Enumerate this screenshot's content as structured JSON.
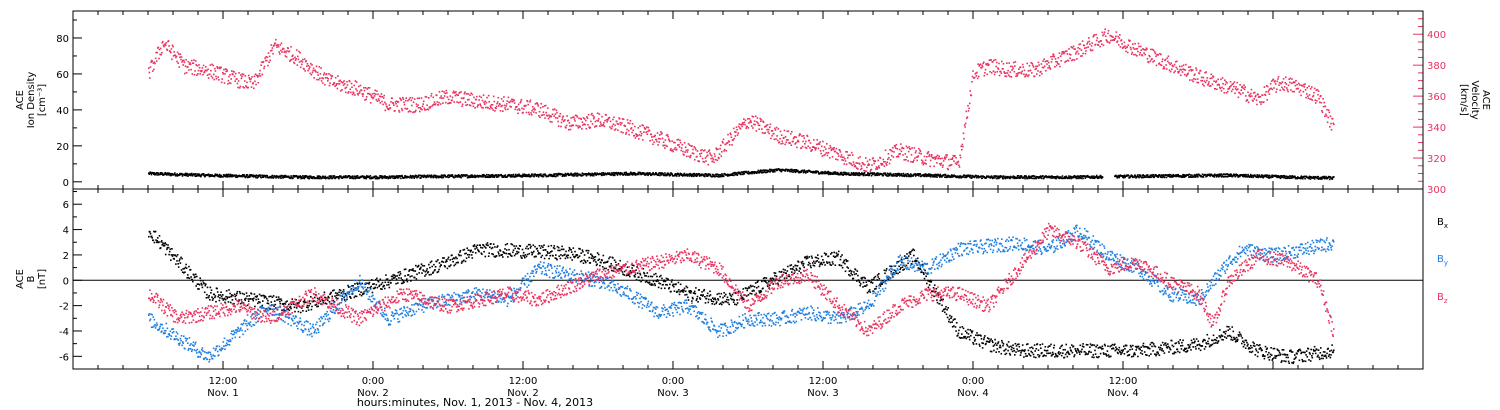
{
  "colors": {
    "black": "#000000",
    "pink": "#e8325f",
    "blue": "#1f7fe0",
    "axis": "#000000"
  },
  "chart_data": [
    {
      "id": "top",
      "type": "scatter",
      "ylabel_lines": [
        "ACE",
        "Ion Density",
        "[cm⁻³]"
      ],
      "ylabel_right_lines": [
        "ACE",
        "Velocity",
        "[km/s]"
      ],
      "ylim": [
        -4,
        95
      ],
      "yticks": [
        0,
        20,
        40,
        60,
        80
      ],
      "ylim_right": [
        300,
        415
      ],
      "yticks_right": [
        300,
        320,
        340,
        360,
        380,
        400
      ],
      "series": [
        {
          "key": "density",
          "axis": "left",
          "color": "black",
          "gap": [
            3.18,
            3.22
          ],
          "x": [
            0.0,
            0.2,
            0.5,
            0.8,
            1.0,
            1.3,
            1.6,
            1.9,
            2.1,
            2.3,
            2.6,
            2.8,
            3.1,
            3.3,
            3.6,
            3.8,
            3.95
          ],
          "y": [
            5,
            4,
            3,
            3,
            3.5,
            4,
            5,
            4,
            7,
            5,
            4,
            3,
            3,
            3.5,
            4,
            3,
            2.5
          ]
        },
        {
          "key": "velocity",
          "axis": "right",
          "color": "pink",
          "x": [
            0.0,
            0.05,
            0.12,
            0.2,
            0.28,
            0.35,
            0.42,
            0.5,
            0.6,
            0.7,
            0.8,
            0.9,
            1.0,
            1.1,
            1.2,
            1.3,
            1.4,
            1.5,
            1.6,
            1.7,
            1.8,
            1.88,
            1.95,
            2.0,
            2.05,
            2.1,
            2.2,
            2.3,
            2.4,
            2.5,
            2.6,
            2.7,
            2.75,
            2.8,
            2.85,
            2.95,
            3.1,
            3.2,
            3.3,
            3.5,
            3.65,
            3.7,
            3.75,
            3.78,
            3.85,
            3.9,
            3.95
          ],
          "y": [
            375,
            395,
            380,
            377,
            372,
            368,
            393,
            385,
            370,
            365,
            355,
            355,
            360,
            357,
            355,
            352,
            343,
            345,
            340,
            333,
            325,
            320,
            335,
            345,
            340,
            335,
            330,
            323,
            315,
            325,
            320,
            317,
            375,
            380,
            378,
            377,
            390,
            400,
            390,
            373,
            363,
            358,
            367,
            369,
            365,
            360,
            340
          ]
        }
      ]
    },
    {
      "id": "bottom",
      "type": "scatter",
      "ylabel_lines": [
        "ACE",
        "B",
        "[nT]"
      ],
      "ylim": [
        -7,
        7.2
      ],
      "yticks": [
        -6,
        -4,
        -2,
        0,
        2,
        4,
        6
      ],
      "zero_line": true,
      "legend": [
        {
          "base": "B",
          "sub": "x",
          "color": "black"
        },
        {
          "base": "B",
          "sub": "y",
          "color": "blue"
        },
        {
          "base": "B",
          "sub": "z",
          "color": "pink"
        }
      ],
      "series": [
        {
          "key": "bx",
          "color": "black",
          "x": [
            0.0,
            0.2,
            0.5,
            0.8,
            1.0,
            1.1,
            1.4,
            1.5,
            1.7,
            1.8,
            1.95,
            2.2,
            2.3,
            2.4,
            2.55,
            2.7,
            2.8,
            2.9,
            3.2,
            3.3,
            3.5,
            3.6,
            3.7,
            3.8,
            3.95
          ],
          "y": [
            4,
            -1,
            -2,
            0,
            1.5,
            2.5,
            2.2,
            1.7,
            0,
            -1,
            -1.5,
            1.5,
            1.8,
            -0.5,
            2,
            -4,
            -5,
            -5.5,
            -5.5,
            -5.5,
            -5,
            -4,
            -5.5,
            -6,
            -5.5
          ]
        },
        {
          "key": "by",
          "color": "blue",
          "x": [
            0.0,
            0.2,
            0.4,
            0.55,
            0.7,
            0.8,
            0.9,
            1.1,
            1.2,
            1.3,
            1.5,
            1.6,
            1.7,
            1.8,
            1.9,
            2.0,
            2.1,
            2.2,
            2.3,
            2.4,
            2.5,
            2.6,
            2.7,
            2.9,
            3.0,
            3.1,
            3.2,
            3.3,
            3.4,
            3.5,
            3.6,
            3.65,
            3.75,
            3.85,
            3.95
          ],
          "y": [
            -3,
            -6,
            -2,
            -4,
            0,
            -3,
            -2,
            -1,
            -1.5,
            1,
            0,
            -1,
            -2.5,
            -2,
            -4,
            -3,
            -3,
            -2.5,
            -3,
            -2,
            1.5,
            1,
            2.5,
            3,
            2.5,
            4,
            2,
            1,
            -1,
            -1.5,
            1.5,
            2.5,
            2,
            2.5,
            3
          ]
        },
        {
          "key": "bz",
          "color": "pink",
          "x": [
            0.0,
            0.1,
            0.3,
            0.4,
            0.55,
            0.7,
            0.85,
            1.0,
            1.2,
            1.3,
            1.5,
            1.6,
            1.7,
            1.8,
            1.9,
            2.0,
            2.1,
            2.2,
            2.3,
            2.4,
            2.5,
            2.6,
            2.7,
            2.8,
            3.0,
            3.1,
            3.2,
            3.3,
            3.4,
            3.5,
            3.55,
            3.6,
            3.7,
            3.8,
            3.9,
            3.95
          ],
          "y": [
            -1,
            -3,
            -2,
            -3,
            -1,
            -3,
            -1,
            -2,
            -1,
            -1.5,
            0.5,
            1,
            1.5,
            2,
            1,
            -2,
            0,
            0.5,
            -2,
            -4,
            -2,
            -1,
            -1,
            -2,
            4,
            3,
            1,
            1.5,
            0,
            -1,
            -3.5,
            0,
            2,
            1.5,
            0,
            -4
          ]
        }
      ]
    }
  ],
  "x_axis": {
    "xlim": [
      -0.25,
      4.25
    ],
    "tick_positions": [
      0.25,
      1.25,
      2.25,
      3.25,
      4.25
    ],
    "tick_labels": [
      [
        "12:00",
        "Nov. 1"
      ],
      [
        "0:00",
        "Nov. 2"
      ],
      [
        "12:00",
        "Nov. 2"
      ],
      [
        "0:00",
        "Nov. 3"
      ],
      [
        "12:00",
        "Nov. 3"
      ],
      [
        "0:00",
        "Nov. 4"
      ],
      [
        "12:00",
        "Nov. 4"
      ]
    ],
    "label_positions": [
      0.25,
      0.75,
      1.25,
      1.75,
      2.25,
      2.75,
      3.25
    ],
    "minor_per_label": 6
  },
  "footer_label": "hours:minutes, Nov.  1, 2013 - Nov.  4, 2013"
}
